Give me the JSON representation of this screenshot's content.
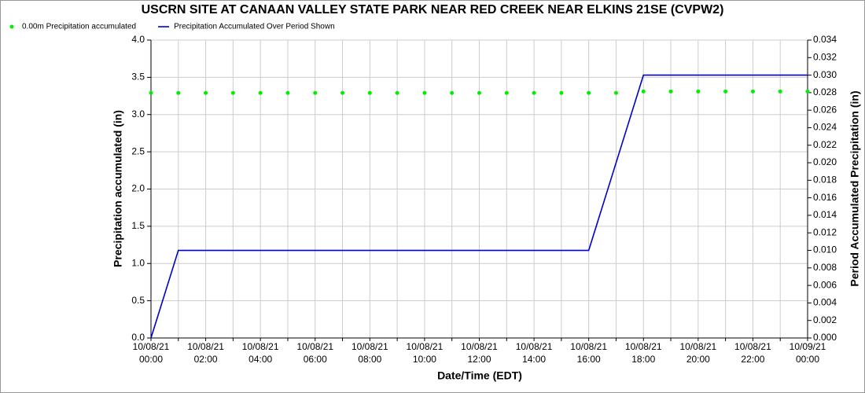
{
  "chart_data": {
    "type": "line",
    "title": "USCRN SITE AT CANAAN VALLEY STATE PARK NEAR RED CREEK NEAR ELKINS 21SE (CVPW2)",
    "x_label": "Date/Time (EDT)",
    "y_label": "Precipitation accumulated (in)",
    "y2_label": "Period Accumulated Precipitation (in)",
    "x": [
      "10/08/21 00:00",
      "10/08/21 01:00",
      "10/08/21 02:00",
      "10/08/21 03:00",
      "10/08/21 04:00",
      "10/08/21 05:00",
      "10/08/21 06:00",
      "10/08/21 07:00",
      "10/08/21 08:00",
      "10/08/21 09:00",
      "10/08/21 10:00",
      "10/08/21 11:00",
      "10/08/21 12:00",
      "10/08/21 13:00",
      "10/08/21 14:00",
      "10/08/21 15:00",
      "10/08/21 16:00",
      "10/08/21 17:00",
      "10/08/21 18:00",
      "10/08/21 19:00",
      "10/08/21 20:00",
      "10/08/21 21:00",
      "10/08/21 22:00",
      "10/08/21 23:00",
      "10/09/21 00:00"
    ],
    "xticks": [
      "10/08/21 00:00",
      "10/08/21 02:00",
      "10/08/21 04:00",
      "10/08/21 06:00",
      "10/08/21 08:00",
      "10/08/21 10:00",
      "10/08/21 12:00",
      "10/08/21 14:00",
      "10/08/21 16:00",
      "10/08/21 18:00",
      "10/08/21 20:00",
      "10/08/21 22:00",
      "10/09/21 00:00"
    ],
    "ylim": [
      0,
      4
    ],
    "yticks": [
      {
        "value": 0,
        "label": "0.0"
      },
      0.5,
      {
        "value": 1,
        "label": "1.0"
      },
      1.5,
      {
        "value": 2,
        "label": "2.0"
      },
      2.5,
      {
        "value": 3,
        "label": "3.0"
      },
      3.5,
      {
        "value": 4,
        "label": "4.0"
      }
    ],
    "y2lim": [
      0,
      0.034
    ],
    "y2ticks": [
      {
        "value": 0,
        "label": "0.000"
      },
      0.002,
      0.004,
      0.006,
      0.008,
      {
        "value": 0.01,
        "label": "0.010"
      },
      0.012,
      0.014,
      0.016,
      0.018,
      {
        "value": 0.02,
        "label": "0.020"
      },
      0.022,
      0.024,
      0.026,
      0.028,
      {
        "value": 0.03,
        "label": "0.030"
      },
      0.032,
      0.034
    ],
    "grid": true,
    "legend": "top-left",
    "series": [
      {
        "name": "0.00m Precipitation accumulated",
        "type": "scatter",
        "color": "#00ee00",
        "values": [
          3.29,
          3.29,
          3.29,
          3.29,
          3.29,
          3.29,
          3.29,
          3.29,
          3.29,
          3.29,
          3.29,
          3.29,
          3.29,
          3.29,
          3.29,
          3.29,
          3.29,
          3.29,
          3.31,
          3.31,
          3.31,
          3.31,
          3.31,
          3.31,
          3.31
        ]
      },
      {
        "name": "Precipitation Accumulated Over Period Shown",
        "type": "line",
        "color": "#0000cc",
        "axis": "y2",
        "values": [
          0,
          0.01,
          0.01,
          0.01,
          0.01,
          0.01,
          0.01,
          0.01,
          0.01,
          0.01,
          0.01,
          0.01,
          0.01,
          0.01,
          0.01,
          0.01,
          0.01,
          0.02,
          0.03,
          0.03,
          0.03,
          0.03,
          0.03,
          0.03,
          0.03
        ]
      }
    ]
  }
}
